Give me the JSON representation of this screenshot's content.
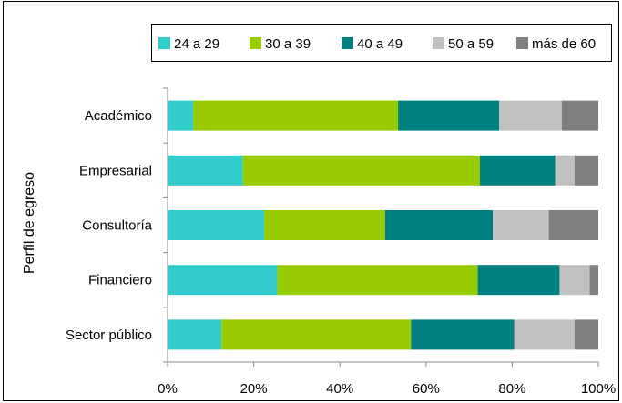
{
  "chart_data": {
    "type": "bar",
    "orientation": "horizontal",
    "stacked": "percent",
    "ylabel": "Perfil de egreso",
    "categories": [
      "Académico",
      "Empresarial",
      "Consultoría",
      "Financiero",
      "Sector público"
    ],
    "series": [
      {
        "name": "24 a 29",
        "color": "#33CCCC",
        "values": [
          6,
          17.5,
          22.5,
          25.5,
          12.5
        ]
      },
      {
        "name": "30 a 39",
        "color": "#99CC00",
        "values": [
          47.5,
          55,
          28,
          46.5,
          44
        ]
      },
      {
        "name": "40 a 49",
        "color": "#008080",
        "values": [
          23.5,
          17.5,
          25,
          19,
          24
        ]
      },
      {
        "name": "50 a 59",
        "color": "#C0C0C0",
        "values": [
          14.5,
          4.5,
          13,
          7,
          14
        ]
      },
      {
        "name": "más de 60",
        "color": "#808080",
        "values": [
          8.5,
          5.5,
          11.5,
          2,
          5.5
        ]
      }
    ],
    "xlim": [
      0,
      100
    ],
    "xticks": [
      "0%",
      "20%",
      "40%",
      "60%",
      "80%",
      "100%"
    ],
    "legend_position": "top-right",
    "grid": false
  }
}
